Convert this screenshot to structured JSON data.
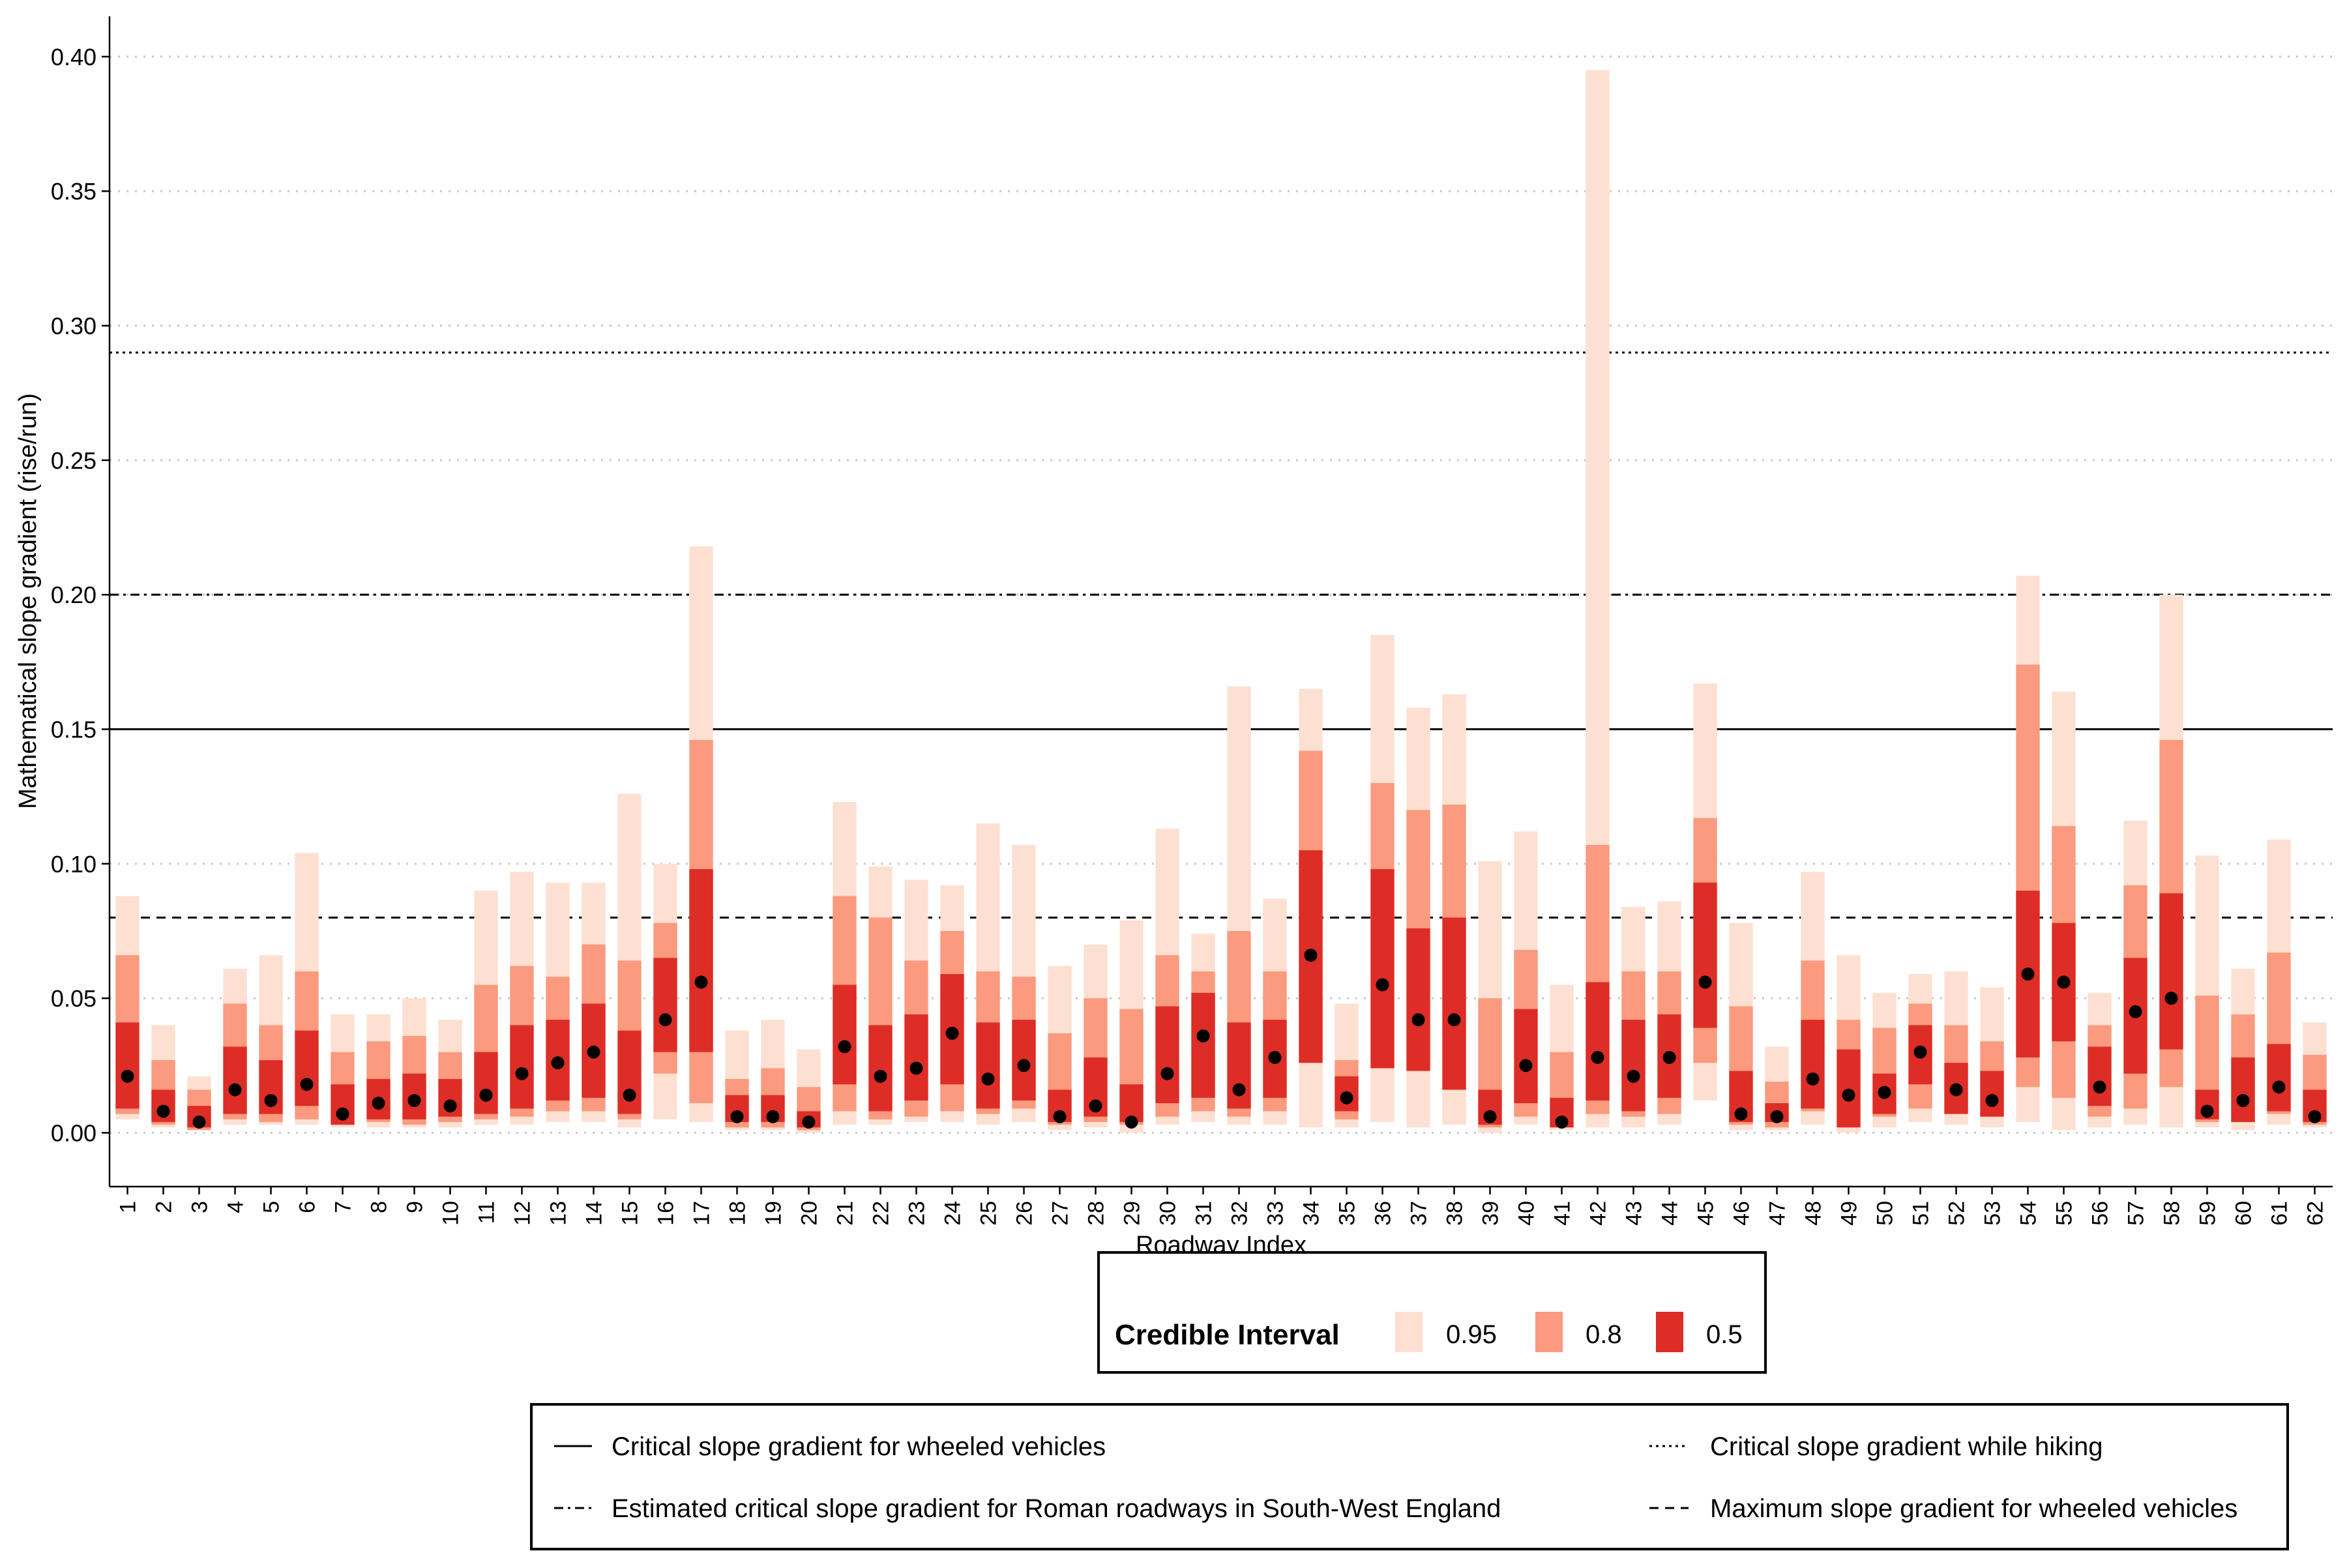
{
  "chart_data": {
    "type": "interval",
    "xlabel": "Roadway Index",
    "ylabel": "Mathematical slope gradient (rise/run)",
    "ylim": [
      -0.02,
      0.415
    ],
    "yticks": [
      0.0,
      0.05,
      0.1,
      0.15,
      0.2,
      0.25,
      0.3,
      0.35,
      0.4
    ],
    "ytick_labels": [
      "0.00",
      "0.05",
      "0.10",
      "0.15",
      "0.20",
      "0.25",
      "0.30",
      "0.35",
      "0.40"
    ],
    "grid": "horizontal dotted",
    "categories": [
      "1",
      "2",
      "3",
      "4",
      "5",
      "6",
      "7",
      "8",
      "9",
      "10",
      "11",
      "12",
      "13",
      "14",
      "15",
      "16",
      "17",
      "18",
      "19",
      "20",
      "21",
      "22",
      "23",
      "24",
      "25",
      "26",
      "27",
      "28",
      "29",
      "30",
      "31",
      "32",
      "33",
      "34",
      "35",
      "36",
      "37",
      "38",
      "39",
      "40",
      "41",
      "42",
      "43",
      "44",
      "45",
      "46",
      "47",
      "48",
      "49",
      "50",
      "51",
      "52",
      "53",
      "54",
      "55",
      "56",
      "57",
      "58",
      "59",
      "60",
      "61",
      "62"
    ],
    "ci95": [
      [
        0.005,
        0.088
      ],
      [
        0.002,
        0.04
      ],
      [
        0.001,
        0.021
      ],
      [
        0.003,
        0.061
      ],
      [
        0.003,
        0.066
      ],
      [
        0.003,
        0.104
      ],
      [
        0.002,
        0.044
      ],
      [
        0.002,
        0.044
      ],
      [
        0.002,
        0.05
      ],
      [
        0.002,
        0.042
      ],
      [
        0.003,
        0.09
      ],
      [
        0.003,
        0.097
      ],
      [
        0.004,
        0.093
      ],
      [
        0.004,
        0.093
      ],
      [
        0.002,
        0.126
      ],
      [
        0.005,
        0.1
      ],
      [
        0.004,
        0.218
      ],
      [
        0.001,
        0.038
      ],
      [
        0.001,
        0.042
      ],
      [
        0.0,
        0.031
      ],
      [
        0.003,
        0.123
      ],
      [
        0.003,
        0.099
      ],
      [
        0.004,
        0.094
      ],
      [
        0.004,
        0.092
      ],
      [
        0.003,
        0.115
      ],
      [
        0.004,
        0.107
      ],
      [
        0.001,
        0.062
      ],
      [
        0.002,
        0.07
      ],
      [
        0.0,
        0.079
      ],
      [
        0.003,
        0.113
      ],
      [
        0.004,
        0.074
      ],
      [
        0.003,
        0.166
      ],
      [
        0.003,
        0.087
      ],
      [
        0.002,
        0.165
      ],
      [
        0.002,
        0.048
      ],
      [
        0.004,
        0.185
      ],
      [
        0.002,
        0.158
      ],
      [
        0.003,
        0.163
      ],
      [
        0.0,
        0.101
      ],
      [
        0.003,
        0.112
      ],
      [
        0.001,
        0.055
      ],
      [
        0.002,
        0.395
      ],
      [
        0.002,
        0.084
      ],
      [
        0.003,
        0.086
      ],
      [
        0.012,
        0.167
      ],
      [
        0.001,
        0.078
      ],
      [
        0.001,
        0.032
      ],
      [
        0.003,
        0.097
      ],
      [
        0.0,
        0.066
      ],
      [
        0.002,
        0.052
      ],
      [
        0.004,
        0.059
      ],
      [
        0.003,
        0.06
      ],
      [
        0.002,
        0.054
      ],
      [
        0.004,
        0.207
      ],
      [
        0.001,
        0.164
      ],
      [
        0.002,
        0.052
      ],
      [
        0.003,
        0.116
      ],
      [
        0.002,
        0.2
      ],
      [
        0.002,
        0.103
      ],
      [
        0.001,
        0.061
      ],
      [
        0.003,
        0.109
      ],
      [
        0.002,
        0.041
      ]
    ],
    "ci80": [
      [
        0.007,
        0.066
      ],
      [
        0.003,
        0.027
      ],
      [
        0.001,
        0.016
      ],
      [
        0.005,
        0.048
      ],
      [
        0.004,
        0.04
      ],
      [
        0.005,
        0.06
      ],
      [
        0.003,
        0.03
      ],
      [
        0.004,
        0.034
      ],
      [
        0.003,
        0.036
      ],
      [
        0.004,
        0.03
      ],
      [
        0.005,
        0.055
      ],
      [
        0.006,
        0.062
      ],
      [
        0.008,
        0.058
      ],
      [
        0.008,
        0.07
      ],
      [
        0.005,
        0.064
      ],
      [
        0.022,
        0.078
      ],
      [
        0.011,
        0.146
      ],
      [
        0.002,
        0.02
      ],
      [
        0.002,
        0.024
      ],
      [
        0.001,
        0.017
      ],
      [
        0.008,
        0.088
      ],
      [
        0.005,
        0.08
      ],
      [
        0.006,
        0.064
      ],
      [
        0.008,
        0.075
      ],
      [
        0.007,
        0.06
      ],
      [
        0.009,
        0.058
      ],
      [
        0.003,
        0.037
      ],
      [
        0.004,
        0.05
      ],
      [
        0.003,
        0.046
      ],
      [
        0.006,
        0.066
      ],
      [
        0.008,
        0.06
      ],
      [
        0.006,
        0.075
      ],
      [
        0.008,
        0.06
      ],
      [
        0.026,
        0.142
      ],
      [
        0.005,
        0.027
      ],
      [
        0.024,
        0.13
      ],
      [
        0.023,
        0.12
      ],
      [
        0.016,
        0.122
      ],
      [
        0.002,
        0.05
      ],
      [
        0.006,
        0.068
      ],
      [
        0.002,
        0.03
      ],
      [
        0.007,
        0.107
      ],
      [
        0.006,
        0.06
      ],
      [
        0.007,
        0.06
      ],
      [
        0.026,
        0.117
      ],
      [
        0.003,
        0.047
      ],
      [
        0.002,
        0.019
      ],
      [
        0.008,
        0.064
      ],
      [
        0.002,
        0.042
      ],
      [
        0.006,
        0.039
      ],
      [
        0.009,
        0.048
      ],
      [
        0.007,
        0.04
      ],
      [
        0.006,
        0.034
      ],
      [
        0.017,
        0.174
      ],
      [
        0.013,
        0.114
      ],
      [
        0.006,
        0.04
      ],
      [
        0.009,
        0.092
      ],
      [
        0.017,
        0.146
      ],
      [
        0.004,
        0.051
      ],
      [
        0.004,
        0.044
      ],
      [
        0.007,
        0.067
      ],
      [
        0.003,
        0.029
      ]
    ],
    "ci50": [
      [
        0.009,
        0.041
      ],
      [
        0.004,
        0.016
      ],
      [
        0.002,
        0.01
      ],
      [
        0.007,
        0.032
      ],
      [
        0.007,
        0.027
      ],
      [
        0.01,
        0.038
      ],
      [
        0.003,
        0.018
      ],
      [
        0.005,
        0.02
      ],
      [
        0.005,
        0.022
      ],
      [
        0.006,
        0.02
      ],
      [
        0.007,
        0.03
      ],
      [
        0.009,
        0.04
      ],
      [
        0.012,
        0.042
      ],
      [
        0.013,
        0.048
      ],
      [
        0.007,
        0.038
      ],
      [
        0.03,
        0.065
      ],
      [
        0.03,
        0.098
      ],
      [
        0.004,
        0.014
      ],
      [
        0.004,
        0.014
      ],
      [
        0.002,
        0.008
      ],
      [
        0.018,
        0.055
      ],
      [
        0.008,
        0.04
      ],
      [
        0.012,
        0.044
      ],
      [
        0.018,
        0.059
      ],
      [
        0.009,
        0.041
      ],
      [
        0.012,
        0.042
      ],
      [
        0.004,
        0.016
      ],
      [
        0.006,
        0.028
      ],
      [
        0.004,
        0.018
      ],
      [
        0.011,
        0.047
      ],
      [
        0.013,
        0.052
      ],
      [
        0.009,
        0.041
      ],
      [
        0.013,
        0.042
      ],
      [
        0.026,
        0.105
      ],
      [
        0.008,
        0.021
      ],
      [
        0.024,
        0.098
      ],
      [
        0.023,
        0.076
      ],
      [
        0.016,
        0.08
      ],
      [
        0.003,
        0.016
      ],
      [
        0.011,
        0.046
      ],
      [
        0.002,
        0.013
      ],
      [
        0.012,
        0.056
      ],
      [
        0.008,
        0.042
      ],
      [
        0.013,
        0.044
      ],
      [
        0.039,
        0.093
      ],
      [
        0.004,
        0.023
      ],
      [
        0.004,
        0.011
      ],
      [
        0.009,
        0.042
      ],
      [
        0.002,
        0.031
      ],
      [
        0.007,
        0.022
      ],
      [
        0.018,
        0.04
      ],
      [
        0.007,
        0.026
      ],
      [
        0.006,
        0.023
      ],
      [
        0.028,
        0.09
      ],
      [
        0.034,
        0.078
      ],
      [
        0.01,
        0.032
      ],
      [
        0.022,
        0.065
      ],
      [
        0.031,
        0.089
      ],
      [
        0.005,
        0.016
      ],
      [
        0.004,
        0.028
      ],
      [
        0.008,
        0.033
      ],
      [
        0.004,
        0.016
      ]
    ],
    "medians": [
      0.021,
      0.008,
      0.004,
      0.016,
      0.012,
      0.018,
      0.007,
      0.011,
      0.012,
      0.01,
      0.014,
      0.022,
      0.026,
      0.03,
      0.014,
      0.042,
      0.056,
      0.006,
      0.006,
      0.004,
      0.032,
      0.021,
      0.024,
      0.037,
      0.02,
      0.025,
      0.006,
      0.01,
      0.004,
      0.022,
      0.036,
      0.016,
      0.028,
      0.066,
      0.013,
      0.055,
      0.042,
      0.042,
      0.006,
      0.025,
      0.004,
      0.028,
      0.021,
      0.028,
      0.056,
      0.007,
      0.006,
      0.02,
      0.014,
      0.015,
      0.03,
      0.016,
      0.012,
      0.059,
      0.056,
      0.017,
      0.045,
      0.05,
      0.008,
      0.012,
      0.017,
      0.006
    ],
    "reference_lines": [
      {
        "name": "Critical slope gradient for wheeled vehicles",
        "y": 0.15,
        "style": "solid"
      },
      {
        "name": "Critical slope gradient while hiking",
        "y": 0.29,
        "style": "dotted"
      },
      {
        "name": "Estimated critical slope gradient for Roman roadways in South-West England",
        "y": 0.2,
        "style": "dashdot"
      },
      {
        "name": "Maximum slope gradient for wheeled vehicles",
        "y": 0.08,
        "style": "dashed"
      }
    ],
    "legend_title": "Credible Interval",
    "legend_levels": [
      {
        "label": "0.95",
        "color": "#fde0d2"
      },
      {
        "label": "0.8",
        "color": "#fb9a7e"
      },
      {
        "label": "0.5",
        "color": "#de2d26"
      }
    ],
    "legend_placement": "bottom"
  }
}
